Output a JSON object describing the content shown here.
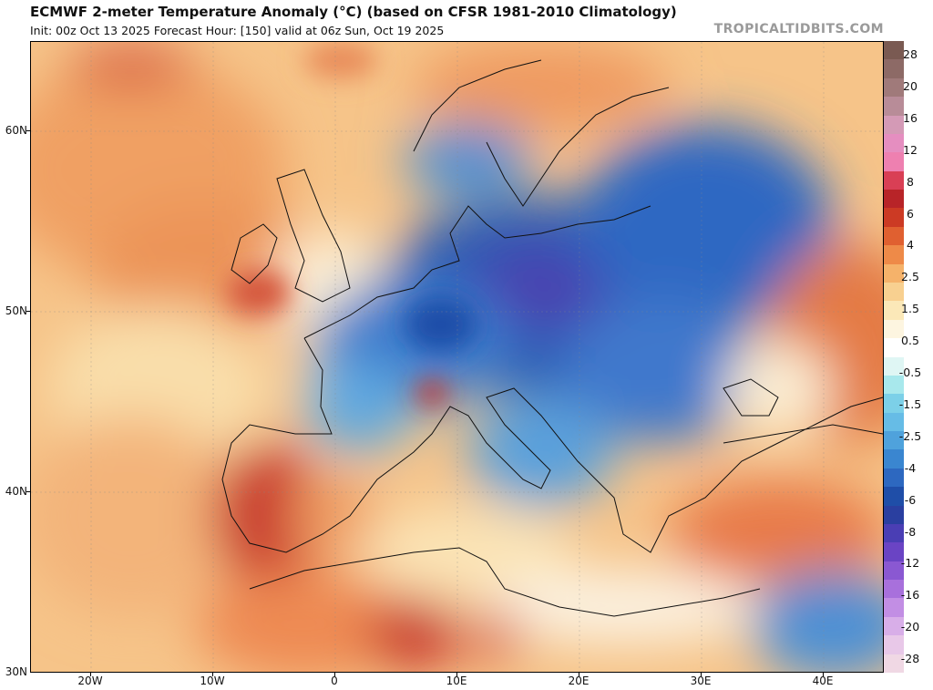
{
  "header": {
    "title": "ECMWF 2-meter Temperature Anomaly (°C) (based on CFSR 1981-2010 Climatology)",
    "subtitle": "Init: 00z Oct 13 2025   Forecast Hour: [150]   valid at 06z Sun, Oct 19 2025",
    "brand": "TROPICALTIDBITS.COM"
  },
  "map": {
    "lat_labels": [
      "60N",
      "50N",
      "40N",
      "30N"
    ],
    "lon_labels": [
      "20W",
      "10W",
      "0",
      "10E",
      "20E",
      "30E",
      "40E"
    ],
    "lon_range": [
      -25,
      45
    ],
    "lat_range": [
      30,
      65
    ]
  },
  "colorbar": {
    "labels": [
      "28",
      "20",
      "16",
      "12",
      "8",
      "6",
      "4",
      "2.5",
      "1.5",
      "0.5",
      "-0.5",
      "-1.5",
      "-2.5",
      "-4",
      "-6",
      "-8",
      "-12",
      "-16",
      "-20",
      "-28"
    ],
    "colors": [
      "#7a5a52",
      "#8d6a66",
      "#a07a7a",
      "#b88c98",
      "#d49ab6",
      "#e58ec0",
      "#ee80b0",
      "#d93f55",
      "#b82428",
      "#cc3a24",
      "#e06030",
      "#ee8a48",
      "#f5b26a",
      "#f8d090",
      "#fbe8b8",
      "#fdf5e0",
      "#ffffff",
      "#dff6f4",
      "#a8e8ec",
      "#7cd0e8",
      "#66bce6",
      "#4fa2dc",
      "#3a86d0",
      "#2d68c0",
      "#1f4ea8",
      "#2a3fa0",
      "#4a3eb4",
      "#6a44c4",
      "#8a58d2",
      "#a870dc",
      "#c28ee4",
      "#d8aee8",
      "#e8c8e8",
      "#f0d8e4"
    ]
  }
}
